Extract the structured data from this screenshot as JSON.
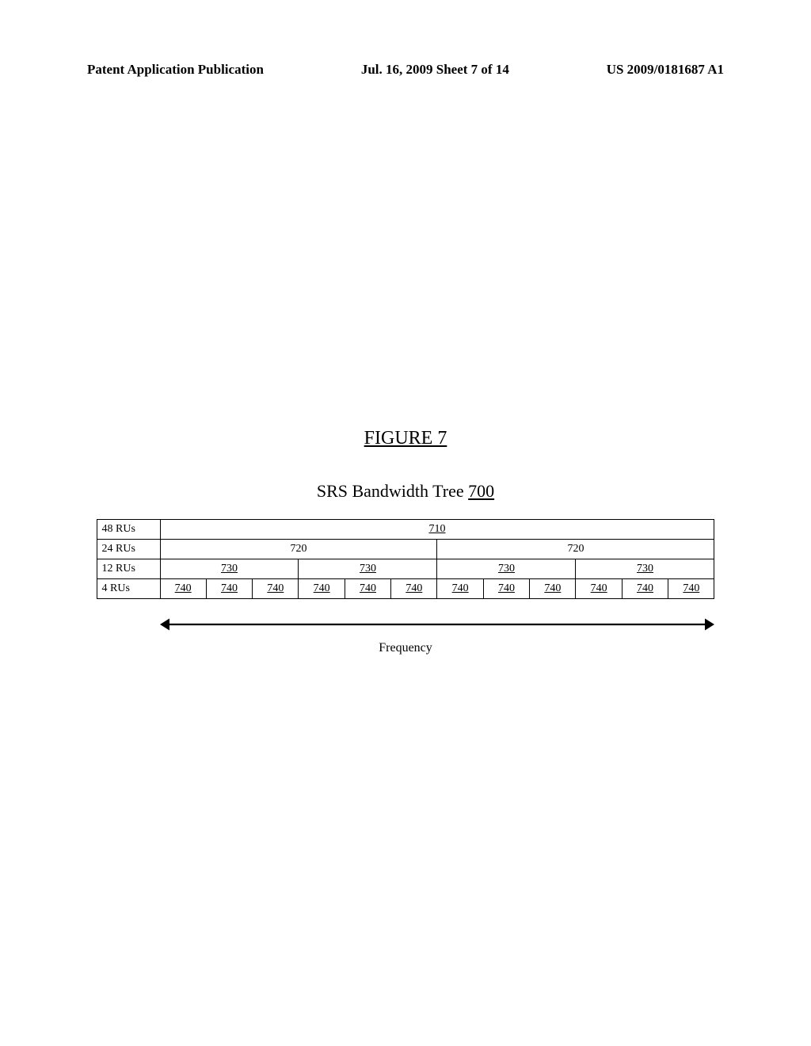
{
  "header": {
    "left": "Patent Application Publication",
    "center": "Jul. 16, 2009  Sheet 7 of 14",
    "right": "US 2009/0181687 A1"
  },
  "figure": {
    "label": "FIGURE 7",
    "title_prefix": "SRS Bandwidth Tree ",
    "title_num": "700"
  },
  "tree": {
    "rows": [
      {
        "label": "48 RUs",
        "span": 12,
        "cells": [
          {
            "text": "710",
            "underline": true
          }
        ]
      },
      {
        "label": "24 RUs",
        "span": 6,
        "cells": [
          {
            "text": "720",
            "underline": false
          },
          {
            "text": "720",
            "underline": false
          }
        ]
      },
      {
        "label": "12 RUs",
        "span": 3,
        "cells": [
          {
            "text": "730",
            "underline": true
          },
          {
            "text": "730",
            "underline": true
          },
          {
            "text": "730",
            "underline": true
          },
          {
            "text": "730",
            "underline": true
          }
        ]
      },
      {
        "label": "4 RUs",
        "span": 1,
        "cells": [
          {
            "text": "740",
            "underline": true
          },
          {
            "text": "740",
            "underline": true
          },
          {
            "text": "740",
            "underline": true
          },
          {
            "text": "740",
            "underline": true
          },
          {
            "text": "740",
            "underline": true
          },
          {
            "text": "740",
            "underline": true
          },
          {
            "text": "740",
            "underline": true
          },
          {
            "text": "740",
            "underline": true
          },
          {
            "text": "740",
            "underline": true
          },
          {
            "text": "740",
            "underline": true
          },
          {
            "text": "740",
            "underline": true
          },
          {
            "text": "740",
            "underline": true
          }
        ]
      }
    ],
    "frequency_label": "Frequency",
    "colors": {
      "border": "#000000",
      "text": "#000000",
      "bg": "#ffffff"
    }
  }
}
